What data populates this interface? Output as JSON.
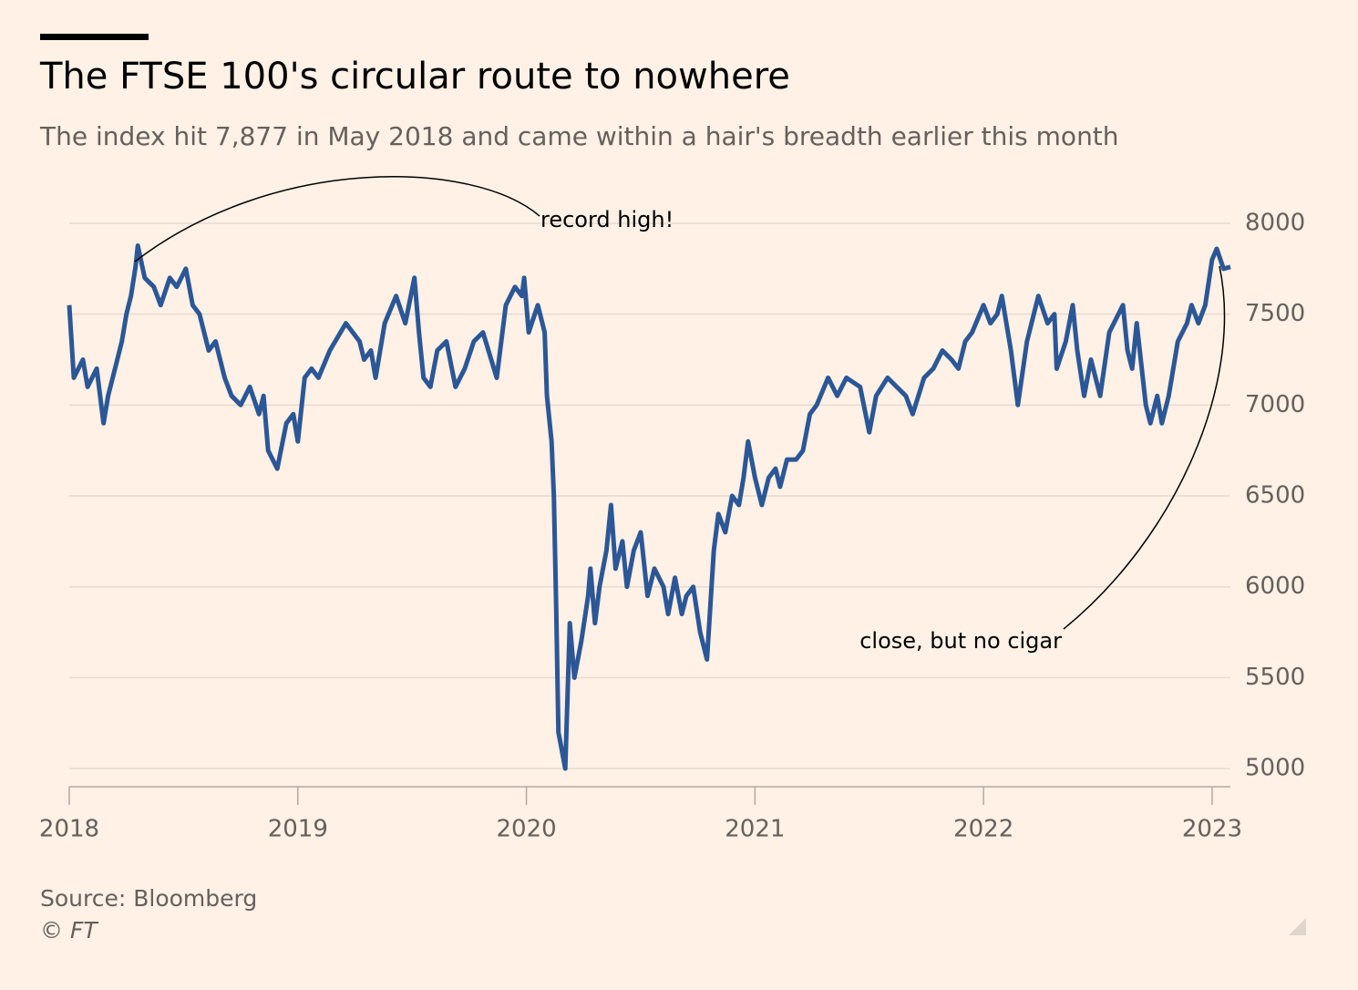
{
  "chart_data": {
    "type": "line",
    "title": "The FTSE 100's circular route to nowhere",
    "subtitle": "The index hit 7,877 in May 2018 and came within a hair's breadth earlier this month",
    "source": "Source: Bloomberg",
    "credit": "© FT",
    "annotations": [
      "record high!",
      "close, but no cigar"
    ],
    "color": "#2b5797",
    "grid": true,
    "x": [
      2018.0,
      2018.02,
      2018.06,
      2018.08,
      2018.12,
      2018.15,
      2018.17,
      2018.2,
      2018.23,
      2018.25,
      2018.27,
      2018.29,
      2018.3,
      2018.33,
      2018.37,
      2018.4,
      2018.44,
      2018.47,
      2018.51,
      2018.54,
      2018.57,
      2018.61,
      2018.64,
      2018.68,
      2018.71,
      2018.75,
      2018.79,
      2018.83,
      2018.85,
      2018.87,
      2018.91,
      2018.95,
      2018.98,
      2019.0,
      2019.03,
      2019.06,
      2019.09,
      2019.14,
      2019.21,
      2019.27,
      2019.29,
      2019.32,
      2019.34,
      2019.38,
      2019.43,
      2019.47,
      2019.51,
      2019.53,
      2019.55,
      2019.58,
      2019.61,
      2019.65,
      2019.69,
      2019.73,
      2019.77,
      2019.81,
      2019.87,
      2019.91,
      2019.95,
      2019.98,
      2019.99,
      2020.01,
      2020.05,
      2020.08,
      2020.09,
      2020.11,
      2020.12,
      2020.13,
      2020.14,
      2020.17,
      2020.19,
      2020.21,
      2020.24,
      2020.27,
      2020.28,
      2020.3,
      2020.32,
      2020.35,
      2020.37,
      2020.39,
      2020.42,
      2020.44,
      2020.47,
      2020.5,
      2020.53,
      2020.56,
      2020.6,
      2020.62,
      2020.65,
      2020.68,
      2020.7,
      2020.73,
      2020.76,
      2020.79,
      2020.82,
      2020.84,
      2020.87,
      2020.9,
      2020.93,
      2020.95,
      2020.97,
      2021.0,
      2021.03,
      2021.06,
      2021.09,
      2021.11,
      2021.14,
      2021.18,
      2021.21,
      2021.24,
      2021.27,
      2021.32,
      2021.36,
      2021.4,
      2021.46,
      2021.5,
      2021.53,
      2021.58,
      2021.62,
      2021.66,
      2021.69,
      2021.74,
      2021.78,
      2021.82,
      2021.86,
      2021.89,
      2021.92,
      2021.95,
      2022.0,
      2022.03,
      2022.06,
      2022.08,
      2022.12,
      2022.15,
      2022.19,
      2022.22,
      2022.24,
      2022.28,
      2022.31,
      2022.32,
      2022.36,
      2022.39,
      2022.41,
      2022.44,
      2022.47,
      2022.51,
      2022.55,
      2022.57,
      2022.61,
      2022.63,
      2022.65,
      2022.67,
      2022.71,
      2022.73,
      2022.76,
      2022.78,
      2022.81,
      2022.85,
      2022.89,
      2022.91,
      2022.94,
      2022.97,
      2023.0,
      2023.02,
      2023.05,
      2023.08
    ],
    "values": [
      7550,
      7150,
      7250,
      7100,
      7200,
      6900,
      7050,
      7200,
      7350,
      7500,
      7600,
      7760,
      7877,
      7700,
      7650,
      7550,
      7700,
      7650,
      7750,
      7550,
      7500,
      7300,
      7350,
      7150,
      7050,
      7000,
      7100,
      6950,
      7050,
      6750,
      6650,
      6900,
      6950,
      6800,
      7150,
      7200,
      7150,
      7300,
      7450,
      7350,
      7250,
      7300,
      7150,
      7450,
      7600,
      7450,
      7700,
      7400,
      7150,
      7100,
      7300,
      7350,
      7100,
      7200,
      7350,
      7400,
      7150,
      7550,
      7650,
      7600,
      7700,
      7400,
      7550,
      7400,
      7050,
      6800,
      6500,
      5900,
      5200,
      5000,
      5800,
      5500,
      5700,
      5950,
      6100,
      5800,
      6000,
      6200,
      6450,
      6100,
      6250,
      6000,
      6200,
      6300,
      5950,
      6100,
      6000,
      5850,
      6050,
      5850,
      5950,
      6000,
      5750,
      5600,
      6200,
      6400,
      6300,
      6500,
      6450,
      6600,
      6800,
      6600,
      6450,
      6600,
      6650,
      6550,
      6700,
      6700,
      6750,
      6950,
      7000,
      7150,
      7050,
      7150,
      7100,
      6850,
      7050,
      7150,
      7100,
      7050,
      6950,
      7150,
      7200,
      7300,
      7250,
      7200,
      7350,
      7400,
      7550,
      7450,
      7500,
      7600,
      7300,
      7000,
      7350,
      7500,
      7600,
      7450,
      7500,
      7200,
      7350,
      7550,
      7300,
      7050,
      7250,
      7050,
      7400,
      7450,
      7550,
      7300,
      7200,
      7450,
      7000,
      6900,
      7050,
      6900,
      7050,
      7350,
      7450,
      7550,
      7450,
      7550,
      7800,
      7860,
      7750,
      7760
    ],
    "xlim": [
      2018,
      2023.08
    ],
    "xticks": [
      2018,
      2019,
      2020,
      2021,
      2022,
      2023
    ],
    "ylim": [
      4900,
      8100
    ],
    "yticks": [
      5000,
      5500,
      6000,
      6500,
      7000,
      7500,
      8000
    ]
  }
}
